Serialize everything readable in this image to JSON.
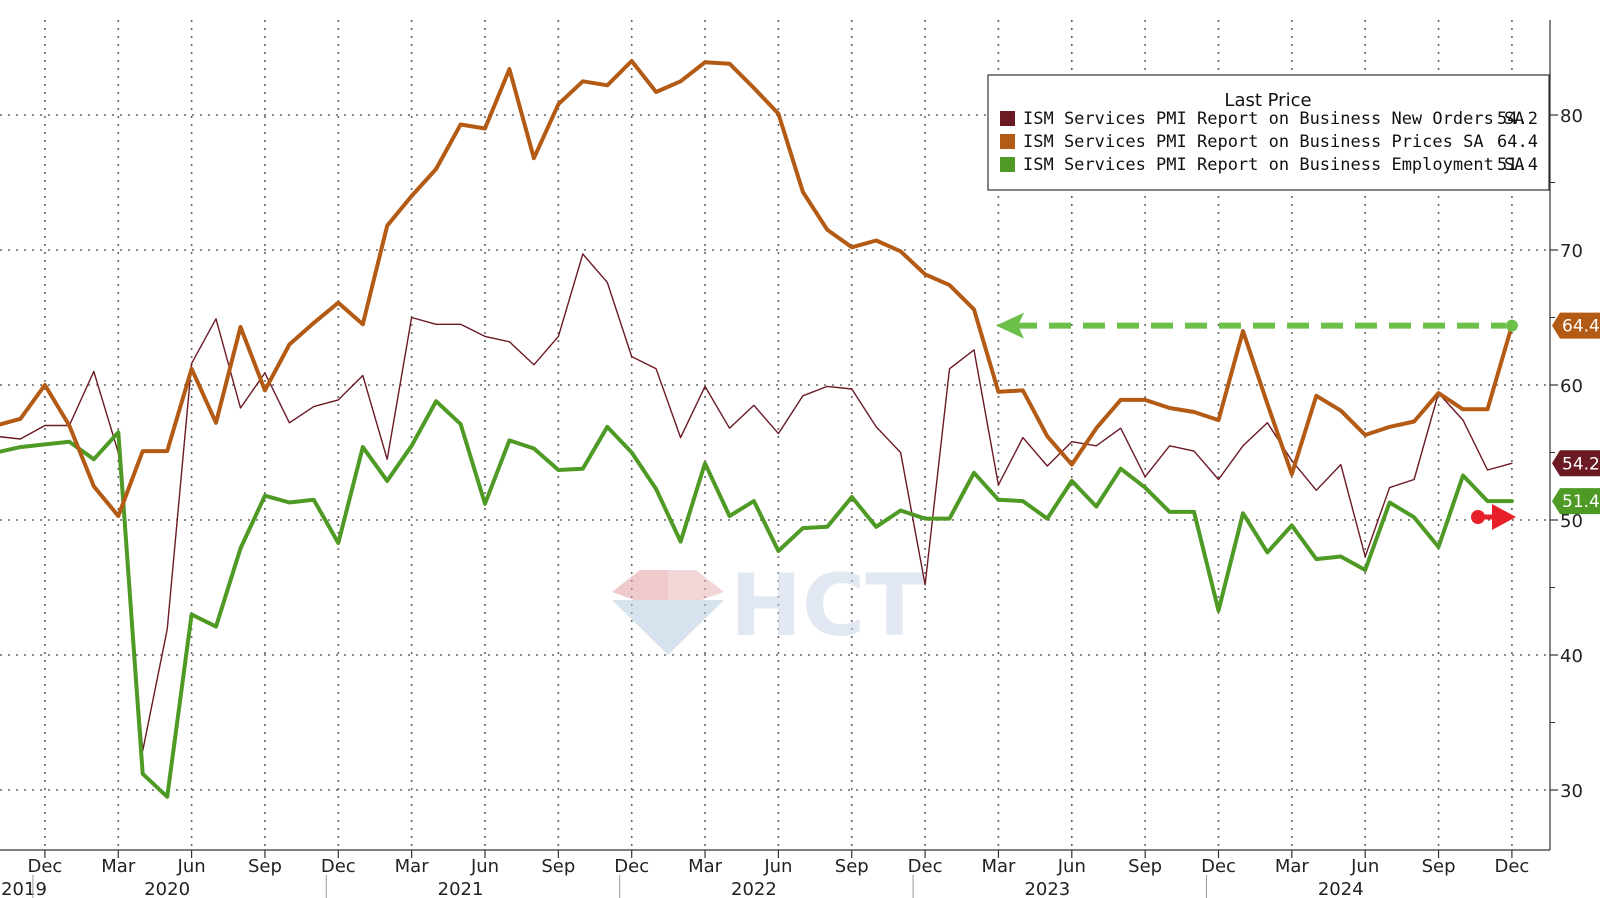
{
  "chart_data": {
    "type": "line",
    "legend": {
      "title": "Last Price",
      "placement": "top-right"
    },
    "series": [
      {
        "name": "ISM Services PMI Report on Business New Orders SA",
        "last_value": "54.2",
        "color": "#6b1a24",
        "values": [
          56.2,
          56.0,
          57.0,
          57.0,
          61.0,
          55.0,
          32.9,
          41.9,
          61.6,
          64.9,
          58.3,
          60.9,
          57.2,
          58.4,
          58.9,
          60.7,
          54.5,
          65.0,
          64.5,
          64.5,
          63.6,
          63.2,
          61.5,
          63.6,
          69.7,
          67.6,
          62.1,
          61.2,
          56.1,
          59.9,
          56.8,
          58.5,
          56.4,
          59.2,
          59.9,
          59.7,
          56.9,
          55.0,
          45.2,
          61.2,
          62.6,
          52.6,
          56.1,
          54.0,
          55.8,
          55.5,
          56.8,
          53.2,
          55.5,
          55.1,
          53.0,
          55.5,
          57.2,
          54.4,
          52.2,
          54.1,
          47.3,
          52.4,
          53.0,
          59.4,
          57.4,
          53.7,
          54.2
        ]
      },
      {
        "name": "ISM Services PMI Report on Business Prices SA",
        "last_value": "64.4",
        "color": "#b35a14",
        "values": [
          57.0,
          57.5,
          60.0,
          57.0,
          52.5,
          50.3,
          55.1,
          55.1,
          61.2,
          57.2,
          64.3,
          59.6,
          63.0,
          64.6,
          66.1,
          64.5,
          71.8,
          74.0,
          76.0,
          79.3,
          79.0,
          83.4,
          76.8,
          80.8,
          82.5,
          82.2,
          84.0,
          81.7,
          82.5,
          83.9,
          83.8,
          82.0,
          80.1,
          74.3,
          71.5,
          70.2,
          70.7,
          69.9,
          68.2,
          67.4,
          65.6,
          59.5,
          59.6,
          56.2,
          54.1,
          56.8,
          58.9,
          58.9,
          58.3,
          58.0,
          57.4,
          64.0,
          58.6,
          53.4,
          59.2,
          58.1,
          56.3,
          56.9,
          57.3,
          59.4,
          58.2,
          58.2,
          64.4
        ]
      },
      {
        "name": "ISM Services PMI Report on Business Employment SA",
        "last_value": "51.4",
        "color": "#4e9a25",
        "values": [
          55.0,
          55.4,
          55.6,
          55.8,
          54.5,
          56.5,
          31.2,
          29.5,
          43.0,
          42.1,
          47.9,
          51.8,
          51.3,
          51.5,
          48.3,
          55.4,
          52.9,
          55.5,
          58.8,
          57.1,
          51.2,
          55.9,
          55.3,
          53.7,
          53.8,
          56.9,
          55.0,
          52.3,
          48.4,
          54.2,
          50.3,
          51.4,
          47.7,
          49.4,
          49.5,
          51.7,
          49.5,
          50.7,
          50.1,
          50.1,
          53.5,
          51.5,
          51.4,
          50.1,
          52.9,
          51.0,
          53.8,
          52.4,
          50.6,
          50.6,
          43.3,
          50.5,
          47.6,
          49.6,
          47.1,
          47.3,
          46.3,
          51.3,
          50.2,
          48.0,
          53.3,
          51.4,
          51.4
        ]
      }
    ],
    "annotation_arrow_value": 64.4,
    "reference_arrow_value": 50,
    "y_ticks": [
      "30",
      "40",
      "50",
      "60",
      "70",
      "80"
    ],
    "ylim": [
      27.5,
      85.5
    ],
    "x_month_labels": [
      "Dec",
      "Mar",
      "Jun",
      "Sep",
      "Dec",
      "Mar",
      "Jun",
      "Sep",
      "Dec",
      "Mar",
      "Jun",
      "Sep",
      "Dec",
      "Mar",
      "Jun",
      "Sep",
      "Dec",
      "Mar",
      "Jun",
      "Sep",
      "Dec"
    ],
    "x_year_labels": [
      "2019",
      "2020",
      "2021",
      "2022",
      "2023",
      "2024"
    ],
    "grid": true,
    "watermark": "HCT"
  }
}
